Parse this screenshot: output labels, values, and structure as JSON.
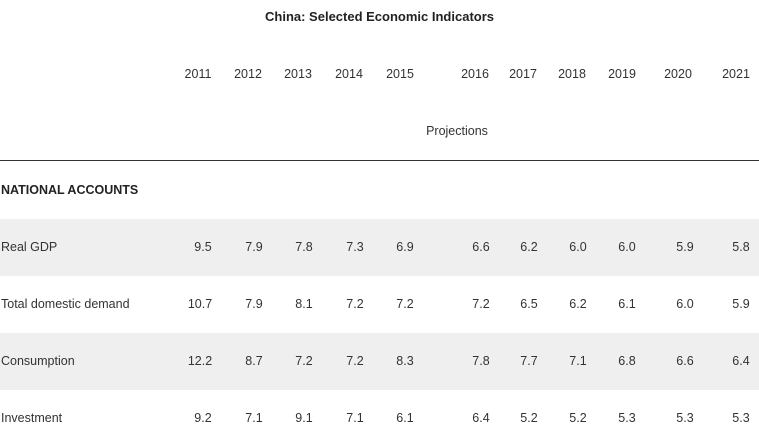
{
  "title": "China: Selected Economic Indicators",
  "years": [
    "2011",
    "2012",
    "2013",
    "2014",
    "2015",
    "2016",
    "2017",
    "2018",
    "2019",
    "2020",
    "2021"
  ],
  "projections_label": "Projections",
  "section": "NATIONAL ACCOUNTS",
  "rows": [
    {
      "label": "Real GDP",
      "values": [
        "9.5",
        "7.9",
        "7.8",
        "7.3",
        "6.9",
        "6.6",
        "6.2",
        "6.0",
        "6.0",
        "5.9",
        "5.8"
      ]
    },
    {
      "label": "Total domestic demand",
      "values": [
        "10.7",
        "7.9",
        "8.1",
        "7.2",
        "7.2",
        "7.2",
        "6.5",
        "6.2",
        "6.1",
        "6.0",
        "5.9"
      ]
    },
    {
      "label": "Consumption",
      "values": [
        "12.2",
        "8.7",
        "7.2",
        "7.2",
        "8.3",
        "7.8",
        "7.7",
        "7.1",
        "6.8",
        "6.6",
        "6.4"
      ]
    },
    {
      "label": "Investment",
      "values": [
        "9.2",
        "7.1",
        "9.1",
        "7.1",
        "6.1",
        "6.4",
        "5.2",
        "5.2",
        "5.3",
        "5.3",
        "5.3"
      ]
    }
  ]
}
